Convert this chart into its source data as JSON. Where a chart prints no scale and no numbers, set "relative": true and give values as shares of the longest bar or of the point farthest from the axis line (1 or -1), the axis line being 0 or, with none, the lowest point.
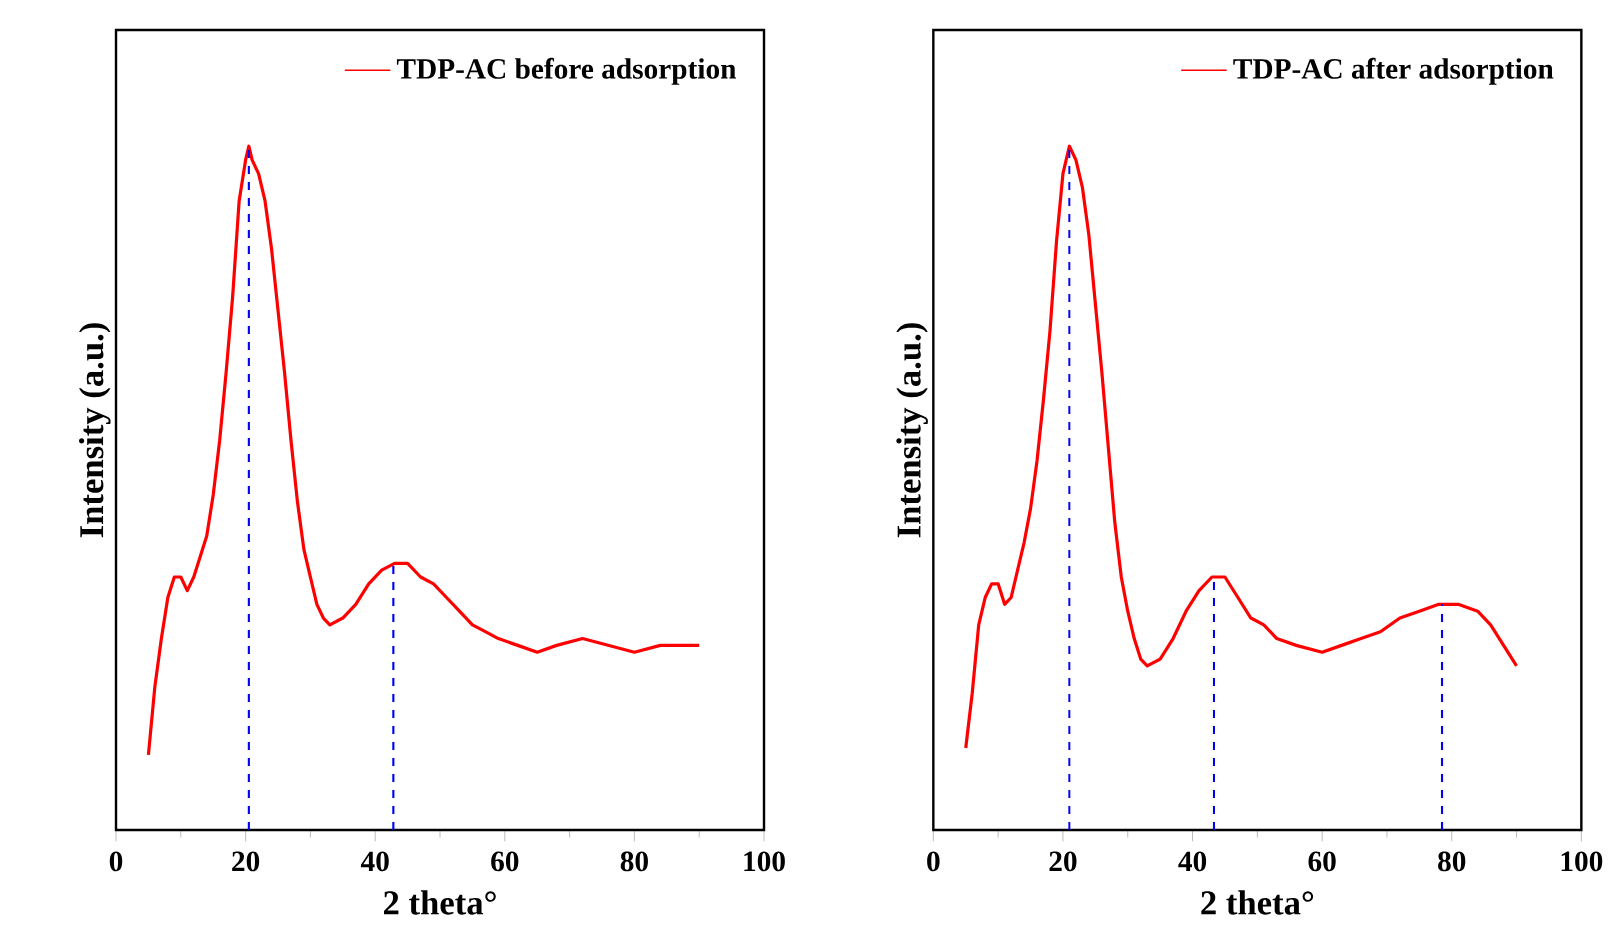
{
  "chart_data": [
    {
      "type": "line",
      "xlabel": "2 theta°",
      "ylabel": "Intensity (a.u.)",
      "relative": true,
      "xlim": [
        0,
        100
      ],
      "xticks": [
        0,
        20,
        40,
        60,
        80,
        100
      ],
      "legend": "top right",
      "grid": false,
      "marker": "none",
      "line_style": "solid",
      "series": [
        {
          "name": "TDP-AC before adsorption",
          "color": "#ff0000",
          "x": [
            5,
            6,
            7,
            8,
            9,
            10,
            11,
            12,
            13,
            14,
            15,
            16,
            17,
            18,
            19,
            20,
            20.5,
            21,
            22,
            23,
            24,
            25,
            26,
            27,
            28,
            29,
            30,
            31,
            32,
            33,
            35,
            37,
            39,
            41,
            43,
            45,
            47,
            49,
            51,
            53,
            55,
            57,
            59,
            62,
            65,
            68,
            72,
            76,
            80,
            84,
            88,
            90
          ],
          "values": [
            0.11,
            0.21,
            0.28,
            0.34,
            0.37,
            0.37,
            0.35,
            0.37,
            0.4,
            0.43,
            0.49,
            0.57,
            0.67,
            0.78,
            0.92,
            0.98,
            1,
            0.98,
            0.96,
            0.92,
            0.85,
            0.76,
            0.67,
            0.57,
            0.48,
            0.41,
            0.37,
            0.33,
            0.31,
            0.3,
            0.31,
            0.33,
            0.36,
            0.38,
            0.39,
            0.39,
            0.37,
            0.36,
            0.34,
            0.32,
            0.3,
            0.29,
            0.28,
            0.27,
            0.26,
            0.27,
            0.28,
            0.27,
            0.26,
            0.27,
            0.27,
            0.27
          ]
        }
      ],
      "ref_lines": [
        {
          "axis": "x",
          "value": 20.5,
          "color": "#0000ff",
          "line_style": "dashed"
        },
        {
          "axis": "x",
          "value": 42.8,
          "color": "#0000ff",
          "line_style": "dashed"
        }
      ]
    },
    {
      "type": "line",
      "xlabel": "2 theta°",
      "ylabel": "Intensity (a.u.)",
      "relative": true,
      "xlim": [
        0,
        100
      ],
      "xticks": [
        0,
        20,
        40,
        60,
        80,
        100
      ],
      "legend": "top right",
      "grid": false,
      "marker": "none",
      "line_style": "solid",
      "series": [
        {
          "name": "TDP-AC after adsorption",
          "color": "#ff0000",
          "x": [
            5,
            6,
            7,
            8,
            9,
            10,
            11,
            12,
            13,
            14,
            15,
            16,
            17,
            18,
            19,
            20,
            21,
            22,
            23,
            24,
            25,
            26,
            27,
            28,
            29,
            30,
            31,
            32,
            33,
            35,
            37,
            39,
            41,
            43,
            45,
            47,
            49,
            51,
            53,
            56,
            60,
            63,
            66,
            69,
            72,
            75,
            78,
            81,
            84,
            86,
            88,
            90
          ],
          "values": [
            0.12,
            0.2,
            0.3,
            0.34,
            0.36,
            0.36,
            0.33,
            0.34,
            0.38,
            0.42,
            0.47,
            0.54,
            0.63,
            0.73,
            0.86,
            0.96,
            1,
            0.98,
            0.94,
            0.87,
            0.77,
            0.67,
            0.56,
            0.45,
            0.37,
            0.32,
            0.28,
            0.25,
            0.24,
            0.25,
            0.28,
            0.32,
            0.35,
            0.37,
            0.37,
            0.34,
            0.31,
            0.3,
            0.28,
            0.27,
            0.26,
            0.27,
            0.28,
            0.29,
            0.31,
            0.32,
            0.33,
            0.33,
            0.32,
            0.3,
            0.27,
            0.24
          ]
        }
      ],
      "ref_lines": [
        {
          "axis": "x",
          "value": 21,
          "color": "#0000ff",
          "line_style": "dashed"
        },
        {
          "axis": "x",
          "value": 43.3,
          "color": "#0000ff",
          "line_style": "dashed"
        },
        {
          "axis": "x",
          "value": 78.5,
          "color": "#0000ff",
          "line_style": "dashed"
        }
      ]
    }
  ]
}
